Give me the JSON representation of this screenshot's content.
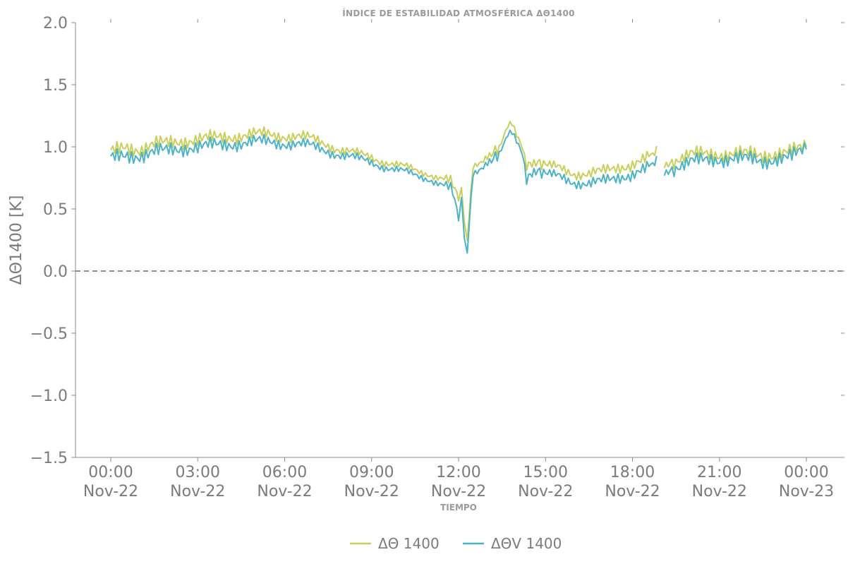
{
  "chart_data": {
    "type": "line",
    "title": "ÍNDICE DE ESTABILIDAD ATMOSFÉRICA ΔΘ1400",
    "xlabel": "TIEMPO",
    "ylabel": "ΔΘ1400 [K]",
    "ylim": [
      -1.5,
      2.0
    ],
    "xlim_hours": [
      0,
      24
    ],
    "y_ticks": [
      "2.0",
      "1.5",
      "1.0",
      "0.5",
      "0.0",
      "−0.5",
      "−1.0",
      "−1.5"
    ],
    "x_ticks": [
      {
        "time": "00:00",
        "date": "Nov-22"
      },
      {
        "time": "03:00",
        "date": "Nov-22"
      },
      {
        "time": "06:00",
        "date": "Nov-22"
      },
      {
        "time": "09:00",
        "date": "Nov-22"
      },
      {
        "time": "12:00",
        "date": "Nov-22"
      },
      {
        "time": "15:00",
        "date": "Nov-22"
      },
      {
        "time": "18:00",
        "date": "Nov-22"
      },
      {
        "time": "21:00",
        "date": "Nov-22"
      },
      {
        "time": "00:00",
        "date": "Nov-23"
      }
    ],
    "reference_line": {
      "y": 0.0,
      "style": "dashed",
      "color": "#666666"
    },
    "legend_position": "bottom-center",
    "grid": false,
    "series": [
      {
        "name": "ΔΘ 1400",
        "color": "#c9cf5a",
        "points": [
          [
            0.0,
            0.95
          ],
          [
            0.5,
            1.0
          ],
          [
            1.0,
            0.98
          ],
          [
            1.5,
            1.02
          ],
          [
            2.0,
            1.03
          ],
          [
            2.5,
            1.05
          ],
          [
            3.0,
            1.06
          ],
          [
            3.5,
            1.07
          ],
          [
            4.0,
            1.08
          ],
          [
            4.5,
            1.09
          ],
          [
            5.0,
            1.1
          ],
          [
            5.5,
            1.1
          ],
          [
            6.0,
            1.09
          ],
          [
            6.5,
            1.08
          ],
          [
            7.0,
            1.06
          ],
          [
            7.5,
            1.02
          ],
          [
            8.0,
            0.97
          ],
          [
            8.5,
            0.94
          ],
          [
            9.0,
            0.92
          ],
          [
            9.5,
            0.88
          ],
          [
            10.0,
            0.84
          ],
          [
            10.5,
            0.81
          ],
          [
            11.0,
            0.79
          ],
          [
            11.5,
            0.74
          ],
          [
            11.8,
            0.7
          ],
          [
            12.0,
            0.56
          ],
          [
            12.1,
            0.7
          ],
          [
            12.2,
            0.35
          ],
          [
            12.3,
            0.3
          ],
          [
            12.5,
            0.86
          ],
          [
            13.0,
            0.93
          ],
          [
            13.4,
            1.02
          ],
          [
            13.7,
            1.15
          ],
          [
            13.85,
            1.17
          ],
          [
            14.0,
            1.1
          ],
          [
            14.2,
            1.0
          ],
          [
            14.35,
            0.85
          ],
          [
            14.6,
            0.85
          ],
          [
            15.0,
            0.84
          ],
          [
            15.5,
            0.83
          ],
          [
            16.0,
            0.79
          ],
          [
            16.5,
            0.78
          ],
          [
            17.0,
            0.8
          ],
          [
            17.5,
            0.84
          ],
          [
            18.0,
            0.86
          ],
          [
            18.5,
            0.9
          ],
          [
            18.9,
            0.96
          ],
          [
            19.05,
            null
          ],
          [
            19.1,
            0.86
          ],
          [
            19.5,
            0.9
          ],
          [
            20.0,
            0.94
          ],
          [
            20.5,
            0.94
          ],
          [
            21.0,
            0.94
          ],
          [
            21.5,
            0.95
          ],
          [
            22.0,
            0.94
          ],
          [
            22.5,
            0.93
          ],
          [
            23.0,
            0.95
          ],
          [
            23.5,
            0.96
          ],
          [
            24.0,
            1.0
          ]
        ]
      },
      {
        "name": "ΔΘV 1400",
        "color": "#4bb3c5",
        "points": [
          [
            0.0,
            0.9
          ],
          [
            0.5,
            0.93
          ],
          [
            1.0,
            0.93
          ],
          [
            1.5,
            0.96
          ],
          [
            2.0,
            0.97
          ],
          [
            2.5,
            0.99
          ],
          [
            3.0,
            1.0
          ],
          [
            3.5,
            1.01
          ],
          [
            4.0,
            1.02
          ],
          [
            4.5,
            1.03
          ],
          [
            5.0,
            1.04
          ],
          [
            5.5,
            1.04
          ],
          [
            6.0,
            1.03
          ],
          [
            6.5,
            1.02
          ],
          [
            7.0,
            1.0
          ],
          [
            7.5,
            0.97
          ],
          [
            8.0,
            0.93
          ],
          [
            8.5,
            0.9
          ],
          [
            9.0,
            0.88
          ],
          [
            9.5,
            0.84
          ],
          [
            10.0,
            0.8
          ],
          [
            10.5,
            0.77
          ],
          [
            11.0,
            0.75
          ],
          [
            11.5,
            0.69
          ],
          [
            11.8,
            0.64
          ],
          [
            12.0,
            0.4
          ],
          [
            12.1,
            0.62
          ],
          [
            12.2,
            0.22
          ],
          [
            12.3,
            0.2
          ],
          [
            12.5,
            0.8
          ],
          [
            13.0,
            0.88
          ],
          [
            13.4,
            0.97
          ],
          [
            13.7,
            1.08
          ],
          [
            13.85,
            1.1
          ],
          [
            14.0,
            1.05
          ],
          [
            14.2,
            0.95
          ],
          [
            14.35,
            0.74
          ],
          [
            14.6,
            0.78
          ],
          [
            15.0,
            0.77
          ],
          [
            15.5,
            0.76
          ],
          [
            16.0,
            0.72
          ],
          [
            16.5,
            0.7
          ],
          [
            17.0,
            0.72
          ],
          [
            17.5,
            0.76
          ],
          [
            18.0,
            0.78
          ],
          [
            18.5,
            0.82
          ],
          [
            18.9,
            0.88
          ],
          [
            19.05,
            null
          ],
          [
            19.1,
            0.8
          ],
          [
            19.5,
            0.84
          ],
          [
            20.0,
            0.88
          ],
          [
            20.5,
            0.89
          ],
          [
            21.0,
            0.9
          ],
          [
            21.5,
            0.91
          ],
          [
            22.0,
            0.9
          ],
          [
            22.5,
            0.88
          ],
          [
            23.0,
            0.91
          ],
          [
            23.5,
            0.92
          ],
          [
            24.0,
            0.98
          ]
        ]
      }
    ]
  }
}
